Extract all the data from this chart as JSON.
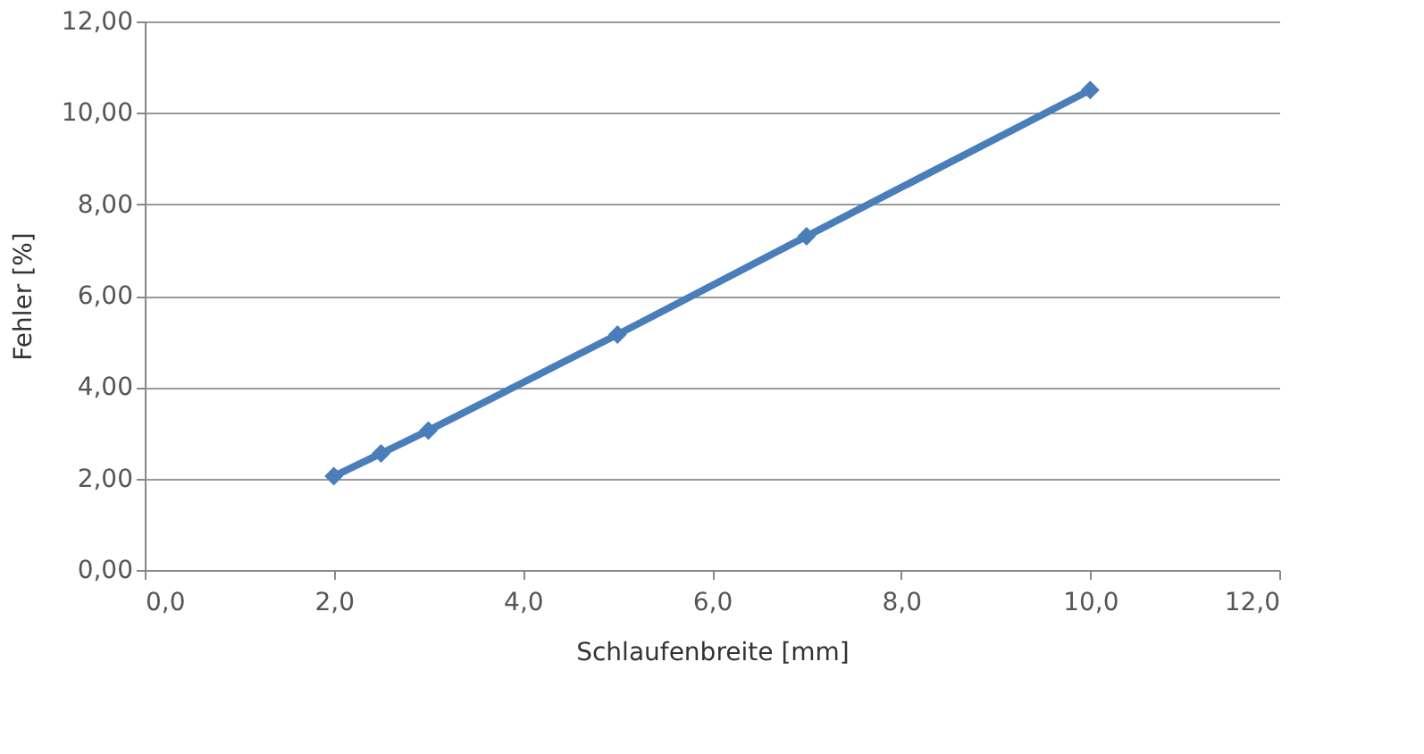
{
  "chart_data": {
    "type": "line",
    "xlabel": "Schlaufenbreite [mm]",
    "ylabel": "Fehler [%]",
    "x": [
      2,
      2.5,
      3,
      5,
      7,
      10
    ],
    "series": [
      {
        "color": "#4a7ebb",
        "values": [
          2.05,
          2.55,
          3.05,
          5.15,
          7.3,
          10.5
        ]
      }
    ],
    "xlim": [
      0,
      12
    ],
    "ylim": [
      0,
      12
    ],
    "xticks": [
      {
        "value": 0,
        "label": "0,0"
      },
      {
        "value": 2,
        "label": "2,0"
      },
      {
        "value": 4,
        "label": "4,0"
      },
      {
        "value": 6,
        "label": "6,0"
      },
      {
        "value": 8,
        "label": "8,0"
      },
      {
        "value": 10,
        "label": "10,0"
      },
      {
        "value": 12,
        "label": "12,0"
      }
    ],
    "yticks": [
      {
        "value": 0,
        "label": "0,00"
      },
      {
        "value": 2,
        "label": "2,00"
      },
      {
        "value": 4,
        "label": "4,00"
      },
      {
        "value": 6,
        "label": "6,00"
      },
      {
        "value": 8,
        "label": "8,00"
      },
      {
        "value": 10,
        "label": "10,00"
      },
      {
        "value": 12,
        "label": "12,00"
      }
    ],
    "grid": "y",
    "marker": "diamond",
    "line_style": "solid"
  }
}
